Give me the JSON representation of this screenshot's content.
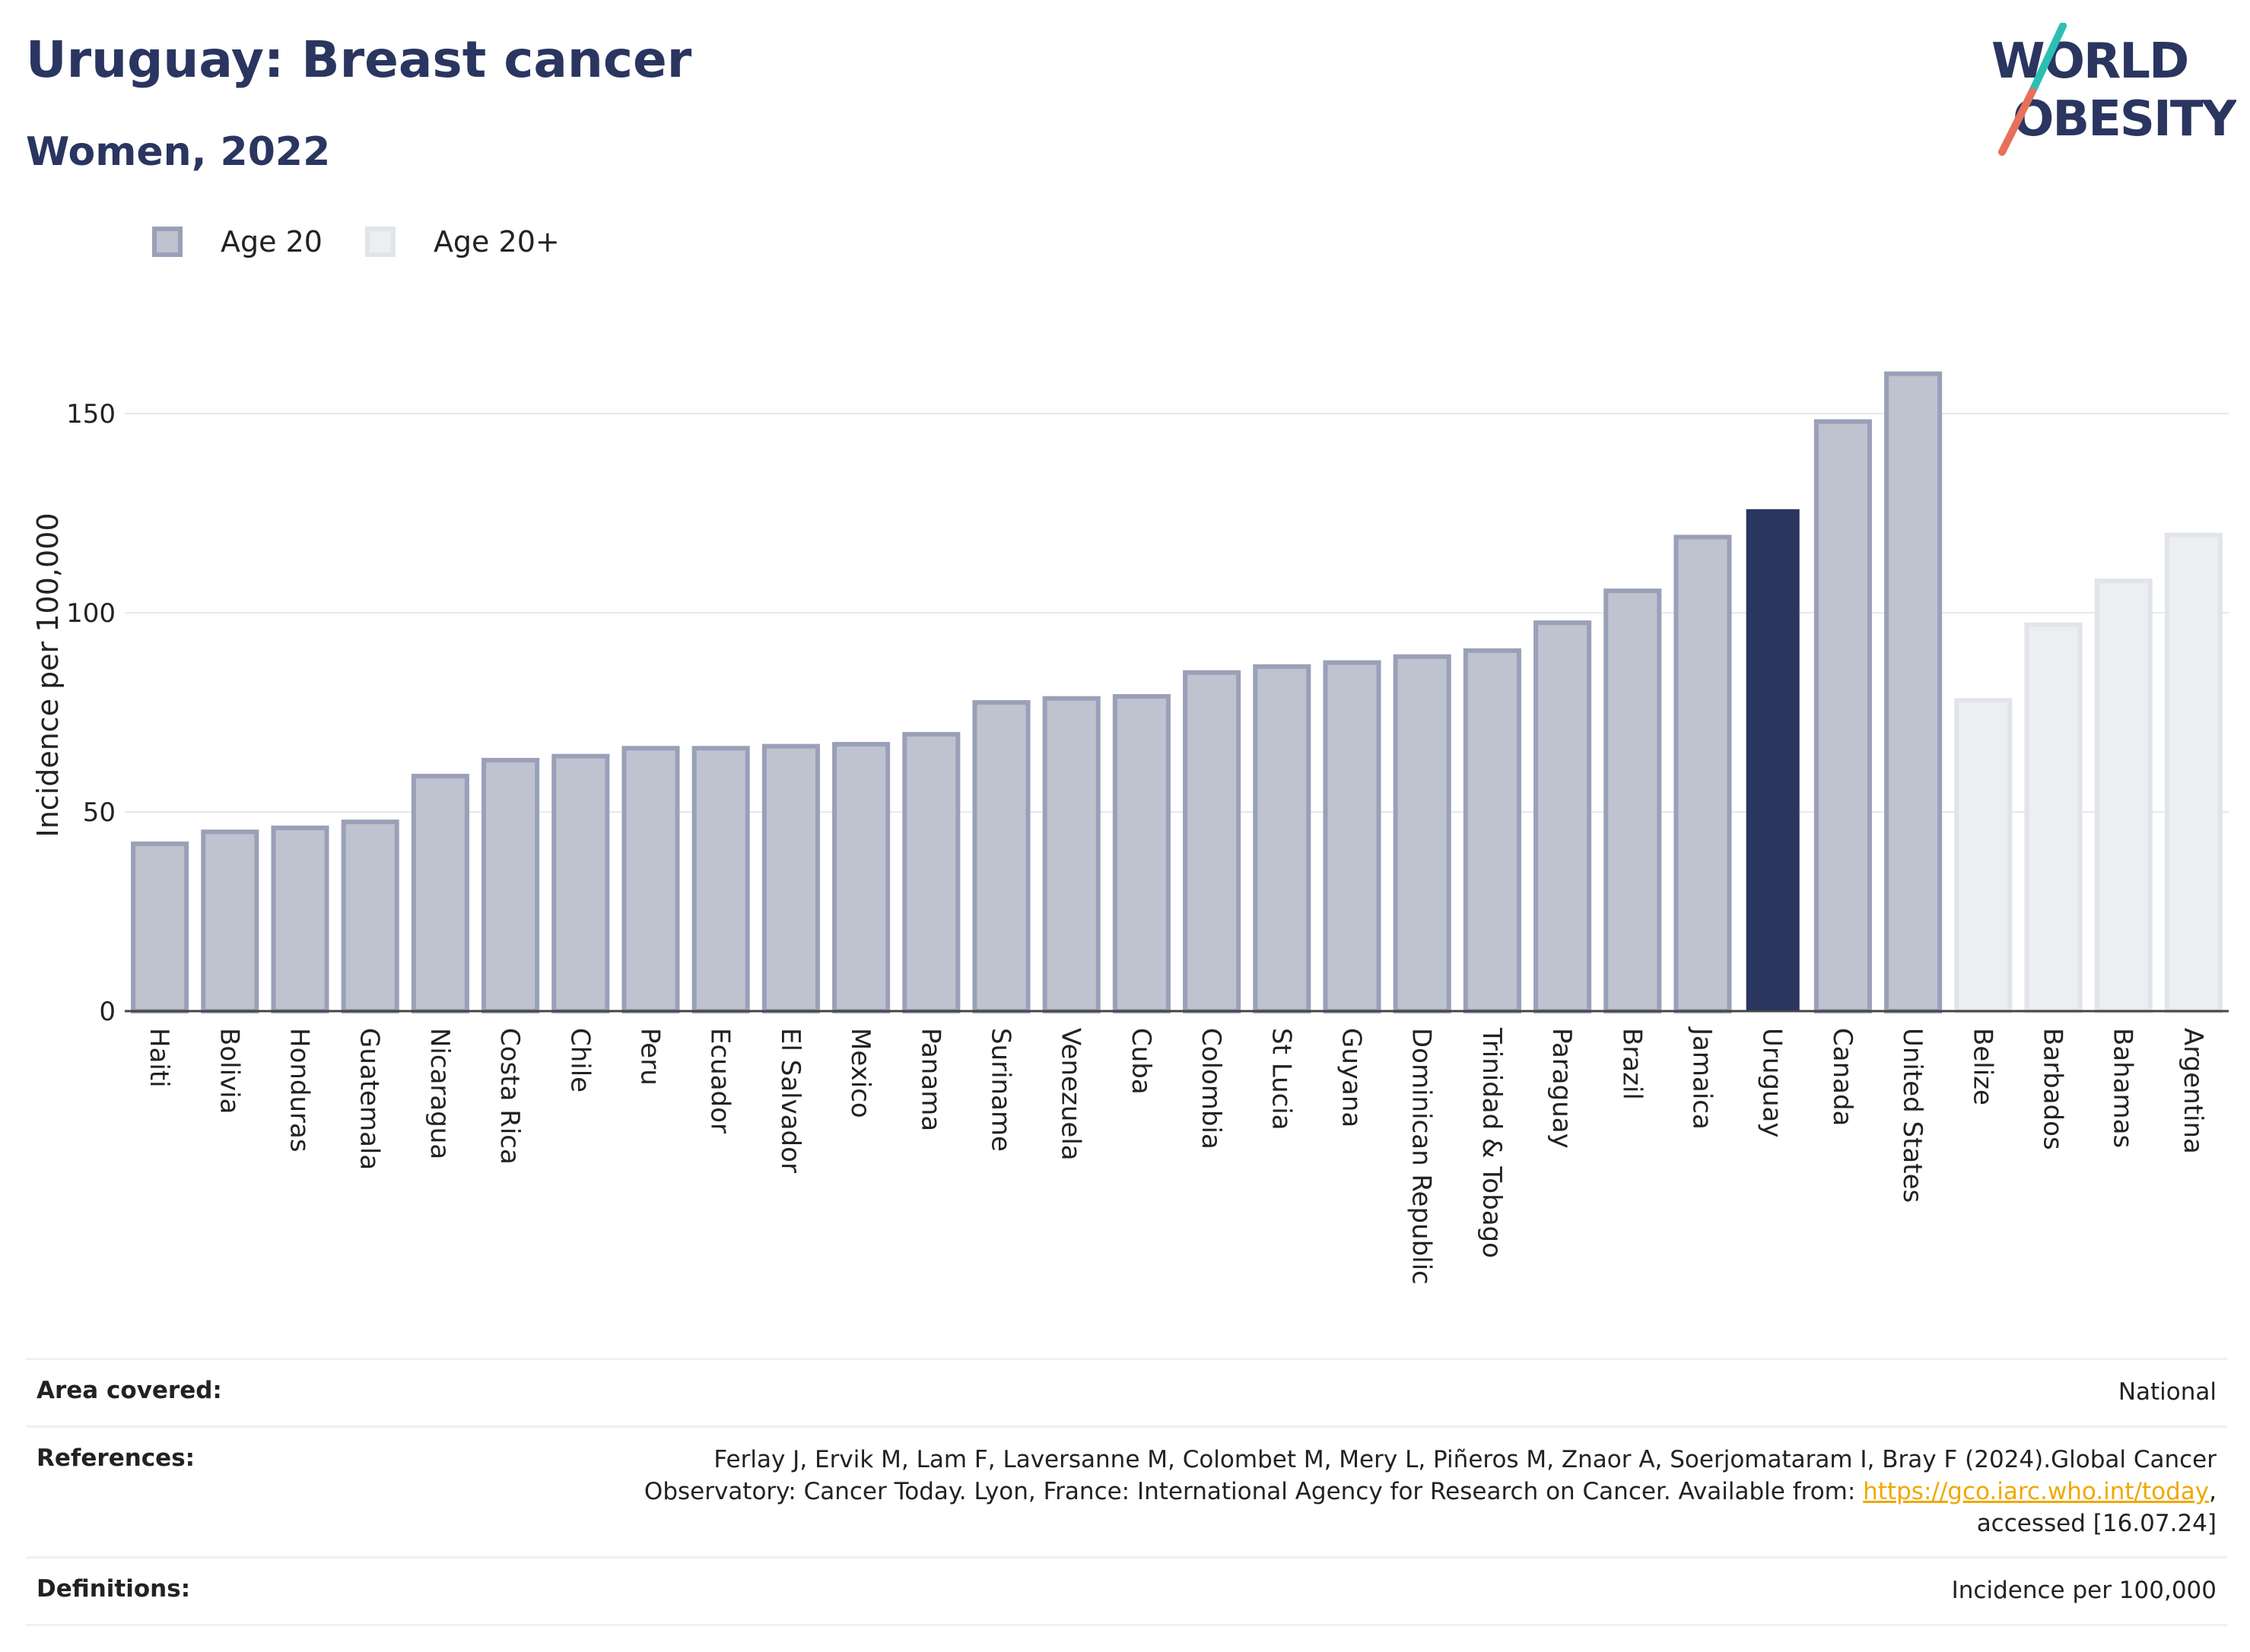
{
  "header": {
    "title": "Uruguay: Breast cancer",
    "subtitle": "Women, 2022"
  },
  "logo": {
    "line1": "WORLD",
    "line2": "OBESITY",
    "slash_colors": [
      "#2bbfb3",
      "#e8705a"
    ]
  },
  "legend": {
    "items": [
      {
        "label": "Age 20",
        "color": "#2a3560"
      },
      {
        "label": "Age 20+",
        "color": "#d8dbe4"
      }
    ]
  },
  "colors": {
    "highlight": "#2a3560",
    "age20_fill": "#bfc3d0",
    "age20_stroke": "#9aa0b8",
    "age20plus_fill": "#eceef2",
    "age20plus_stroke": "#e1e4ea",
    "brand": "#2a3560"
  },
  "chart_data": {
    "type": "bar",
    "ylabel": "Incidence per 100,000",
    "xlabel": "",
    "ylim": [
      0,
      175
    ],
    "yticks": [
      0,
      50,
      100,
      150
    ],
    "grid": true,
    "legend_position": "top-left",
    "highlight": "Uruguay",
    "categories": [
      "Haiti",
      "Bolivia",
      "Honduras",
      "Guatemala",
      "Nicaragua",
      "Costa Rica",
      "Chile",
      "Peru",
      "Ecuador",
      "El Salvador",
      "Mexico",
      "Panama",
      "Suriname",
      "Venezuela",
      "Cuba",
      "Colombia",
      "St Lucia",
      "Guyana",
      "Dominican Republic",
      "Trinidad & Tobago",
      "Paraguay",
      "Brazil",
      "Jamaica",
      "Uruguay",
      "Canada",
      "United States",
      "Belize",
      "Barbados",
      "Bahamas",
      "Argentina"
    ],
    "values": [
      42,
      45,
      46,
      47.5,
      59,
      63,
      64,
      66,
      66,
      66.5,
      67,
      69.5,
      77.5,
      78.5,
      79,
      85,
      86.5,
      87.5,
      89,
      90.5,
      97.5,
      105.5,
      119,
      126,
      148,
      160,
      78,
      97,
      108,
      119.5
    ],
    "groups": [
      "Age 20",
      "Age 20",
      "Age 20",
      "Age 20",
      "Age 20",
      "Age 20",
      "Age 20",
      "Age 20",
      "Age 20",
      "Age 20",
      "Age 20",
      "Age 20",
      "Age 20",
      "Age 20",
      "Age 20",
      "Age 20",
      "Age 20",
      "Age 20",
      "Age 20",
      "Age 20",
      "Age 20",
      "Age 20",
      "Age 20",
      "Age 20",
      "Age 20",
      "Age 20",
      "Age 20+",
      "Age 20+",
      "Age 20+",
      "Age 20+"
    ]
  },
  "footer": {
    "area": {
      "label": "Area covered:",
      "value": "National"
    },
    "references": {
      "label": "References:",
      "text1": "Ferlay J, Ervik M, Lam F, Laversanne M, Colombet M, Mery L, Piñeros M, Znaor A, Soerjomataram I, Bray F (2024).Global Cancer",
      "text2": "Observatory: Cancer Today. Lyon, France: International Agency for Research on Cancer. Available from: ",
      "link": "https://gco.iarc.who.int/today",
      "text3": ",",
      "text4": "accessed [16.07.24]"
    },
    "definitions": {
      "label": "Definitions:",
      "value": "Incidence per 100,000"
    }
  }
}
